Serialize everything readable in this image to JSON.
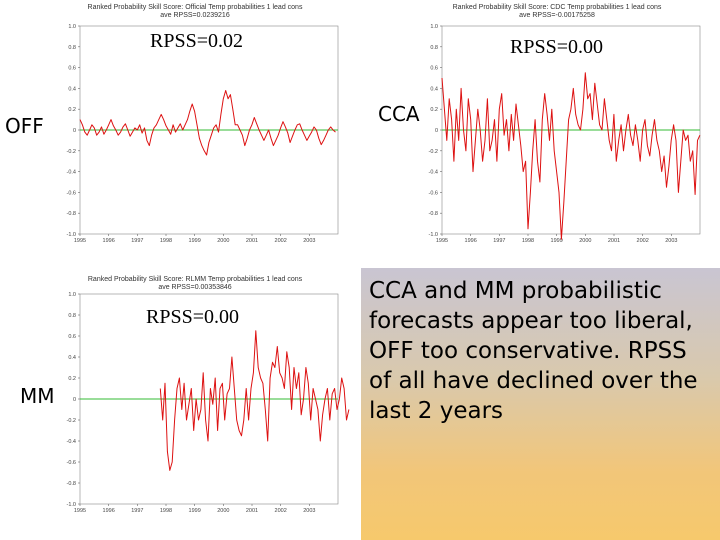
{
  "panels": [
    {
      "id": "off",
      "title_line1": "Ranked Probability Skill Score: Official Temp probabilities 1 lead cons",
      "title_line2": "ave RPSS=0.0239216",
      "rpss_label": "RPSS=0.02",
      "side_label": "OFF"
    },
    {
      "id": "cca",
      "title_line1": "Ranked Probability Skill Score: CDC Temp probabilities 1 lead cons",
      "title_line2": "ave RPSS=-0.00175258",
      "rpss_label": "RPSS=0.00",
      "side_label": "CCA"
    },
    {
      "id": "mm",
      "title_line1": "Ranked Probability Skill Score: RLMM Temp probabilities 1 lead cons",
      "title_line2": "ave RPSS=0.00353846",
      "rpss_label": "RPSS=0.00",
      "side_label": "MM"
    }
  ],
  "note": "CCA and MM probabilistic forecasts appear too liberal, OFF too conservative.  RPSS of all have declined over the last 2 years",
  "colors": {
    "series": "#dd1111",
    "zero_line": "#33bb33",
    "note_top": "#c9c5d2",
    "note_bottom": "#f6c96c"
  },
  "chart_data": [
    {
      "type": "line",
      "title": "Ranked Probability Skill Score: Official Temp probabilities 1 lead cons",
      "subtitle": "ave RPSS=0.0239216",
      "annotation": "RPSS=0.02",
      "ylim": [
        -1,
        1
      ],
      "yticks": [
        "1.0",
        "0.8",
        "0.6",
        "0.4",
        "0.2",
        "0",
        "-0.2",
        "-0.4",
        "-0.6",
        "-0.8",
        "-1.0"
      ],
      "xlim": [
        1995,
        2004
      ],
      "xticks": [
        "1995",
        "1996",
        "1997",
        "1998",
        "1999",
        "2000",
        "2001",
        "2002",
        "2003"
      ],
      "reference_line": 0,
      "grid": false,
      "series": [
        {
          "x_start": 1995,
          "x_step": 0.0833,
          "values": [
            0.1,
            0.05,
            -0.02,
            -0.05,
            0.0,
            0.05,
            0.02,
            -0.05,
            -0.02,
            0.03,
            -0.04,
            0.0,
            0.05,
            0.1,
            0.04,
            0.0,
            -0.05,
            -0.02,
            0.03,
            0.06,
            0.0,
            -0.06,
            -0.02,
            0.02,
            0.0,
            0.05,
            -0.03,
            0.02,
            -0.1,
            -0.15,
            -0.05,
            0.02,
            0.05,
            0.1,
            0.15,
            0.1,
            0.04,
            0.0,
            -0.04,
            0.05,
            -0.02,
            0.02,
            0.06,
            0.0,
            0.05,
            0.1,
            0.18,
            0.25,
            0.18,
            0.05,
            -0.08,
            -0.15,
            -0.2,
            -0.24,
            -0.12,
            -0.05,
            0.02,
            0.05,
            -0.02,
            0.15,
            0.3,
            0.38,
            0.3,
            0.34,
            0.2,
            0.05,
            0.05,
            0.0,
            -0.05,
            -0.15,
            -0.08,
            0.0,
            0.05,
            0.12,
            0.06,
            0.0,
            -0.05,
            -0.1,
            -0.05,
            0.0,
            -0.08,
            -0.15,
            -0.1,
            -0.05,
            0.02,
            0.08,
            0.03,
            -0.03,
            -0.12,
            -0.06,
            0.0,
            0.05,
            0.06,
            0.0,
            -0.05,
            -0.1,
            -0.06,
            -0.02,
            0.03,
            0.0,
            -0.08,
            -0.14,
            -0.1,
            -0.05,
            0.0,
            0.03,
            0.0,
            -0.02
          ]
        }
      ]
    },
    {
      "type": "line",
      "title": "Ranked Probability Skill Score: CDC Temp probabilities 1 lead cons",
      "subtitle": "ave RPSS=-0.00175258",
      "annotation": "RPSS=0.00",
      "ylim": [
        -1,
        1
      ],
      "yticks": [
        "1.0",
        "0.8",
        "0.6",
        "0.4",
        "0.2",
        "0",
        "-0.2",
        "-0.4",
        "-0.6",
        "-0.8",
        "-1.0"
      ],
      "xlim": [
        1995,
        2004
      ],
      "xticks": [
        "1995",
        "1996",
        "1997",
        "1998",
        "1999",
        "2000",
        "2001",
        "2002",
        "2003"
      ],
      "reference_line": 0,
      "grid": false,
      "series": [
        {
          "x_start": 1995,
          "x_step": 0.0833,
          "values": [
            0.5,
            0.2,
            -0.1,
            0.3,
            0.1,
            -0.3,
            0.2,
            -0.1,
            0.4,
            0.0,
            -0.2,
            0.3,
            0.1,
            -0.4,
            -0.1,
            0.2,
            0.0,
            -0.3,
            -0.1,
            0.3,
            -0.2,
            -0.1,
            0.1,
            -0.3,
            0.2,
            0.35,
            -0.05,
            0.1,
            -0.2,
            0.15,
            -0.1,
            0.25,
            0.05,
            -0.15,
            -0.4,
            -0.3,
            -0.95,
            -0.6,
            -0.2,
            0.1,
            -0.3,
            -0.5,
            0.1,
            0.35,
            0.15,
            -0.1,
            0.2,
            -0.2,
            -0.4,
            -0.6,
            -1.05,
            -0.7,
            -0.3,
            0.1,
            0.2,
            0.4,
            0.15,
            0.05,
            0.0,
            0.2,
            0.55,
            0.3,
            0.35,
            0.1,
            0.45,
            0.25,
            0.05,
            0.0,
            0.3,
            0.1,
            -0.1,
            -0.2,
            0.15,
            -0.3,
            -0.1,
            0.05,
            -0.2,
            0.0,
            0.15,
            -0.05,
            -0.15,
            0.05,
            -0.1,
            -0.3,
            0.0,
            0.1,
            -0.15,
            -0.25,
            -0.05,
            0.1,
            -0.1,
            -0.2,
            -0.4,
            -0.25,
            -0.55,
            -0.35,
            -0.1,
            0.05,
            -0.1,
            -0.6,
            -0.3,
            0.0,
            -0.1,
            -0.05,
            -0.3,
            -0.2,
            -0.62,
            -0.1,
            -0.05
          ]
        }
      ]
    },
    {
      "type": "line",
      "title": "Ranked Probability Skill Score: RLMM Temp probabilities 1 lead cons",
      "subtitle": "ave RPSS=0.00353846",
      "annotation": "RPSS=0.00",
      "ylim": [
        -1,
        1
      ],
      "yticks": [
        "1.0",
        "0.8",
        "0.6",
        "0.4",
        "0.2",
        "0",
        "-0.2",
        "-0.4",
        "-0.6",
        "-0.8",
        "-1.0"
      ],
      "xlim": [
        1995,
        2004
      ],
      "xticks": [
        "1995",
        "1996",
        "1997",
        "1998",
        "1999",
        "2000",
        "2001",
        "2002",
        "2003"
      ],
      "reference_line": 0,
      "grid": false,
      "series": [
        {
          "x_start": 1997.8,
          "x_step": 0.0833,
          "values": [
            0.1,
            -0.2,
            0.15,
            -0.5,
            -0.68,
            -0.6,
            -0.2,
            0.1,
            0.2,
            -0.1,
            0.15,
            -0.2,
            -0.05,
            0.1,
            -0.3,
            0.0,
            -0.2,
            -0.1,
            0.25,
            -0.2,
            -0.4,
            0.1,
            -0.05,
            0.2,
            -0.3,
            0.1,
            0.15,
            -0.2,
            0.05,
            0.1,
            0.4,
            0.1,
            -0.2,
            -0.3,
            -0.35,
            -0.2,
            0.1,
            -0.2,
            0.1,
            0.25,
            0.65,
            0.3,
            0.2,
            0.15,
            -0.1,
            -0.4,
            0.2,
            0.35,
            0.3,
            0.5,
            0.25,
            0.2,
            0.1,
            0.45,
            0.3,
            -0.1,
            0.3,
            0.1,
            0.25,
            -0.15,
            0.0,
            0.3,
            0.15,
            -0.2,
            0.1,
            0.0,
            -0.1,
            -0.4,
            -0.15,
            0.0,
            0.1,
            -0.2,
            0.05,
            0.1,
            -0.1,
            0.0,
            0.2,
            0.1,
            -0.2,
            -0.1
          ]
        }
      ]
    }
  ]
}
